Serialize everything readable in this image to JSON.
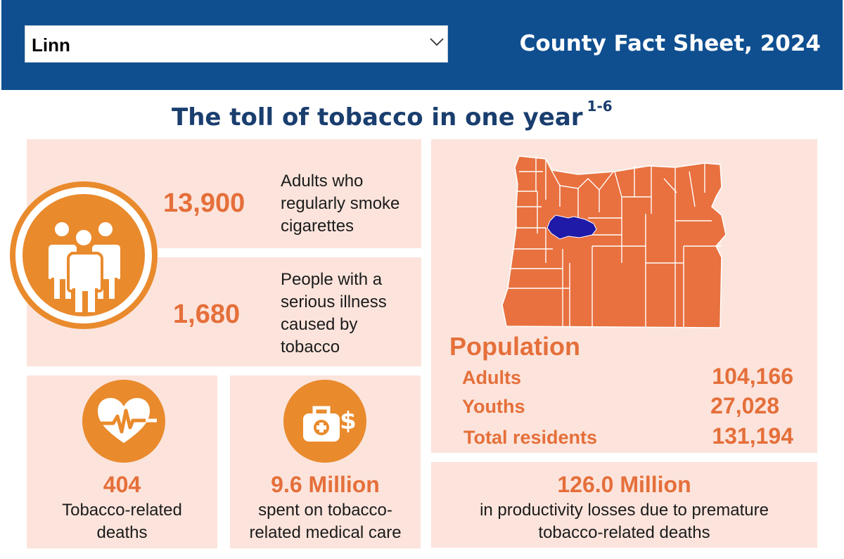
{
  "header": {
    "county_select": {
      "value": "Linn"
    },
    "title": "County Fact Sheet, 2024",
    "background_color": "#0f4f90"
  },
  "main": {
    "title": "The toll of tobacco in one year",
    "title_superscript": "1-6"
  },
  "smokers": {
    "value": "13,900",
    "description": "Adults who regularly smoke cigarettes",
    "icon": "people-icon"
  },
  "illness": {
    "value": "1,680",
    "description": "People with a serious illness caused by tobacco"
  },
  "deaths": {
    "value": "404",
    "description": "Tobacco-related deaths",
    "icon": "heart-heartbeat-icon"
  },
  "medical": {
    "value": "9.6 Million",
    "description": "spent on tobacco-related medical care",
    "icon": "medical-bag-dollar-icon"
  },
  "productivity": {
    "value": "126.0 Million",
    "description": "in productivity losses due to premature tobacco-related deaths"
  },
  "population": {
    "title": "Population",
    "rows": [
      {
        "label": "Adults",
        "value": "104,166"
      },
      {
        "label": "Youths",
        "value": "27,028"
      },
      {
        "label": "Total residents",
        "value": "131,194"
      }
    ]
  },
  "map": {
    "state": "Oregon",
    "highlighted_county": "Linn",
    "county_color": "#e8713f",
    "highlight_color": "#1f1aa8"
  },
  "colors": {
    "accent_orange": "#e98a2d",
    "number_orange": "#e56f3a",
    "panel_background": "#fce4dc",
    "title_navy": "#1a3e6e"
  }
}
